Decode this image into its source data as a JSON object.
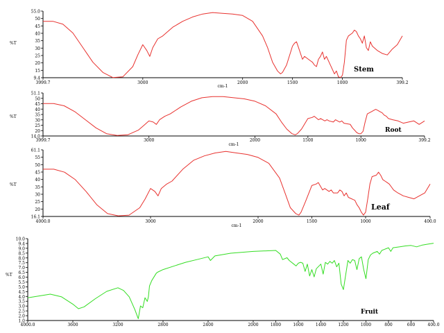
{
  "figure": {
    "title": ""
  },
  "chart_data": [
    {
      "type": "line",
      "panel_label": "Stem",
      "xlabel": "cm-1",
      "ylabel": "%T",
      "xlim": [
        3999.7,
        399.2
      ],
      "ylim": [
        9.4,
        55.0
      ],
      "x_ticks": [
        "3999.7",
        "3000",
        "2000",
        "1500",
        "1000",
        "399.2"
      ],
      "y_ticks": [
        "55.0",
        "50",
        "45",
        "40",
        "35",
        "30",
        "25",
        "20",
        "15",
        "9.4"
      ],
      "series": [
        {
          "color": "#e8312e",
          "x": [
            3999.7,
            3900,
            3800,
            3700,
            3600,
            3500,
            3400,
            3300,
            3200,
            3100,
            3050,
            3000,
            2960,
            2930,
            2900,
            2850,
            2800,
            2700,
            2600,
            2500,
            2400,
            2300,
            2200,
            2100,
            2000,
            1900,
            1800,
            1750,
            1700,
            1650,
            1620,
            1600,
            1560,
            1500,
            1480,
            1460,
            1440,
            1400,
            1380,
            1360,
            1340,
            1320,
            1300,
            1280,
            1260,
            1240,
            1220,
            1200,
            1180,
            1160,
            1140,
            1100,
            1080,
            1060,
            1040,
            1020,
            1000,
            980,
            960,
            940,
            900,
            880,
            860,
            840,
            820,
            800,
            780,
            760,
            740,
            720,
            700,
            650,
            600,
            550,
            500,
            450,
            399.2
          ],
          "y": [
            48,
            48,
            46,
            40,
            30,
            20,
            13,
            9.5,
            10,
            17,
            25,
            32,
            28,
            24,
            30,
            36,
            38,
            44,
            48,
            51,
            53,
            54,
            53.5,
            53,
            52,
            48,
            38,
            30,
            20,
            14,
            12,
            13,
            18,
            31,
            33,
            34,
            30,
            22,
            24,
            23,
            22,
            21,
            20,
            18,
            17,
            22,
            24,
            27,
            22,
            24,
            21,
            15,
            12,
            14,
            10,
            9.5,
            11,
            20,
            35,
            38,
            40,
            42,
            41,
            38,
            36,
            33,
            38,
            30,
            28,
            34,
            31,
            28,
            26,
            25,
            29,
            32,
            38
          ]
        }
      ]
    },
    {
      "type": "line",
      "panel_label": "Root",
      "xlabel": "cm-1",
      "ylabel": "%T",
      "xlim": [
        3999.7,
        399.2
      ],
      "ylim": [
        14.0,
        51.1
      ],
      "x_ticks": [
        "3999.7",
        "3000",
        "2000",
        "1500",
        "1000",
        "399.2"
      ],
      "y_ticks": [
        "51.1",
        "50",
        "45",
        "40",
        "35",
        "30",
        "25",
        "20",
        "14.0"
      ],
      "series": [
        {
          "color": "#e8312e",
          "x": [
            3999.7,
            3900,
            3800,
            3700,
            3600,
            3500,
            3400,
            3300,
            3200,
            3100,
            3050,
            3000,
            2960,
            2930,
            2900,
            2850,
            2800,
            2700,
            2600,
            2500,
            2400,
            2300,
            2200,
            2100,
            2000,
            1900,
            1800,
            1750,
            1700,
            1650,
            1620,
            1600,
            1560,
            1500,
            1460,
            1440,
            1400,
            1380,
            1340,
            1320,
            1300,
            1260,
            1240,
            1220,
            1200,
            1180,
            1160,
            1100,
            1080,
            1060,
            1040,
            1020,
            1000,
            980,
            960,
            940,
            900,
            880,
            860,
            840,
            820,
            800,
            780,
            760,
            740,
            700,
            650,
            600,
            550,
            500,
            450,
            399.2
          ],
          "y": [
            42,
            42,
            40,
            35,
            28,
            21,
            16,
            14.5,
            15,
            19,
            23,
            27,
            26,
            24,
            28,
            31,
            33,
            39,
            44,
            47,
            48,
            48,
            47,
            46,
            44,
            40,
            33,
            26,
            20,
            16,
            15,
            16,
            20,
            29,
            30,
            31,
            28,
            29,
            27,
            28,
            27,
            26,
            28,
            27,
            26,
            27,
            25,
            24,
            21,
            19,
            17,
            16,
            16,
            18,
            26,
            33,
            35,
            36,
            37,
            36,
            35,
            34,
            32,
            31,
            29,
            28,
            27,
            25,
            26,
            27,
            24,
            27
          ]
        }
      ]
    },
    {
      "type": "line",
      "panel_label": "Leaf",
      "xlabel": "cm-1",
      "ylabel": "%T",
      "xlim": [
        4000.0,
        400.0
      ],
      "ylim": [
        16.1,
        61.1
      ],
      "x_ticks": [
        "4000.0",
        "3000",
        "2000",
        "1500",
        "1000",
        "400.0"
      ],
      "y_ticks": [
        "61.1",
        "55",
        "50",
        "45",
        "40",
        "35",
        "30",
        "25",
        "20",
        "16.1"
      ],
      "series": [
        {
          "color": "#e8312e",
          "x": [
            4000,
            3900,
            3800,
            3700,
            3600,
            3500,
            3400,
            3300,
            3200,
            3100,
            3050,
            3000,
            2960,
            2930,
            2900,
            2850,
            2800,
            2700,
            2600,
            2500,
            2400,
            2300,
            2200,
            2100,
            2000,
            1900,
            1800,
            1750,
            1700,
            1650,
            1620,
            1600,
            1560,
            1500,
            1460,
            1440,
            1400,
            1380,
            1340,
            1320,
            1300,
            1260,
            1240,
            1220,
            1200,
            1180,
            1160,
            1100,
            1080,
            1060,
            1040,
            1020,
            1000,
            980,
            960,
            940,
            900,
            880,
            860,
            840,
            820,
            800,
            780,
            760,
            740,
            700,
            650,
            600,
            550,
            500,
            450,
            400
          ],
          "y": [
            48,
            48,
            46,
            41,
            33,
            24,
            18,
            16.5,
            17,
            22,
            28,
            35,
            33,
            30,
            35,
            38,
            40,
            48,
            54,
            57,
            59,
            60,
            59,
            58,
            56,
            52,
            42,
            32,
            22,
            18,
            17,
            19,
            26,
            37,
            38,
            39,
            34,
            35,
            33,
            34,
            32,
            32,
            34,
            33,
            30,
            32,
            29,
            27,
            24,
            22,
            19,
            17,
            19,
            28,
            38,
            43,
            44,
            46,
            44,
            41,
            40,
            39,
            38,
            36,
            34,
            32,
            30,
            29,
            28,
            30,
            32,
            38
          ]
        }
      ]
    },
    {
      "type": "line",
      "panel_label": "Fruit",
      "xlabel": "",
      "ylabel": "%T",
      "xlim": [
        4000.0,
        400.0
      ],
      "ylim": [
        1.0,
        10.0
      ],
      "x_ticks": [
        "4000.0",
        "3600",
        "3200",
        "2800",
        "2400",
        "2000",
        "1800",
        "1600",
        "1400",
        "1200",
        "1000",
        "800",
        "600",
        "400.0"
      ],
      "y_ticks": [
        "10.0",
        "9.4",
        "9.0",
        "8.5",
        "8.0",
        "7.5",
        "7.0",
        "6.5",
        "6.0",
        "5.5",
        "5.0",
        "4.5",
        "4.0",
        "3.5",
        "3.0",
        "2.5",
        "2.0",
        "1.0"
      ],
      "series": [
        {
          "color": "#33dd22",
          "x": [
            4000,
            3900,
            3800,
            3700,
            3600,
            3550,
            3500,
            3400,
            3300,
            3200,
            3150,
            3100,
            3050,
            3020,
            3000,
            2980,
            2960,
            2940,
            2930,
            2920,
            2900,
            2860,
            2850,
            2800,
            2700,
            2600,
            2500,
            2400,
            2380,
            2340,
            2200,
            2000,
            1800,
            1760,
            1740,
            1700,
            1680,
            1640,
            1620,
            1600,
            1580,
            1560,
            1540,
            1520,
            1500,
            1480,
            1460,
            1440,
            1400,
            1380,
            1360,
            1340,
            1320,
            1300,
            1280,
            1260,
            1240,
            1220,
            1200,
            1160,
            1140,
            1120,
            1100,
            1080,
            1060,
            1040,
            1020,
            1000,
            980,
            960,
            940,
            900,
            880,
            860,
            840,
            820,
            800,
            780,
            760,
            700,
            650,
            600,
            550,
            500,
            450,
            400
          ],
          "y": [
            3.5,
            3.7,
            3.9,
            3.6,
            2.8,
            2.3,
            2.5,
            3.4,
            4.2,
            4.6,
            4.3,
            3.6,
            2.2,
            1.2,
            2.6,
            2.4,
            3.5,
            3.1,
            3.6,
            4.8,
            5.4,
            6.2,
            6.3,
            6.6,
            7.0,
            7.4,
            7.7,
            8.0,
            7.6,
            8.1,
            8.4,
            8.6,
            8.7,
            8.3,
            7.7,
            7.9,
            7.6,
            7.2,
            7.0,
            7.3,
            7.4,
            7.3,
            6.4,
            7.2,
            5.9,
            6.6,
            5.8,
            6.7,
            7.2,
            6.1,
            7.4,
            7.2,
            7.5,
            7.3,
            7.6,
            6.9,
            7.3,
            5.0,
            4.4,
            7.6,
            7.3,
            7.7,
            7.6,
            6.6,
            7.8,
            8.0,
            6.6,
            5.6,
            7.7,
            8.2,
            8.4,
            8.6,
            8.3,
            8.7,
            8.8,
            8.9,
            9.0,
            8.6,
            9.0,
            9.1,
            9.2,
            9.25,
            9.1,
            9.3,
            9.4,
            9.5
          ]
        }
      ],
      "subplot_note": ""
    }
  ]
}
